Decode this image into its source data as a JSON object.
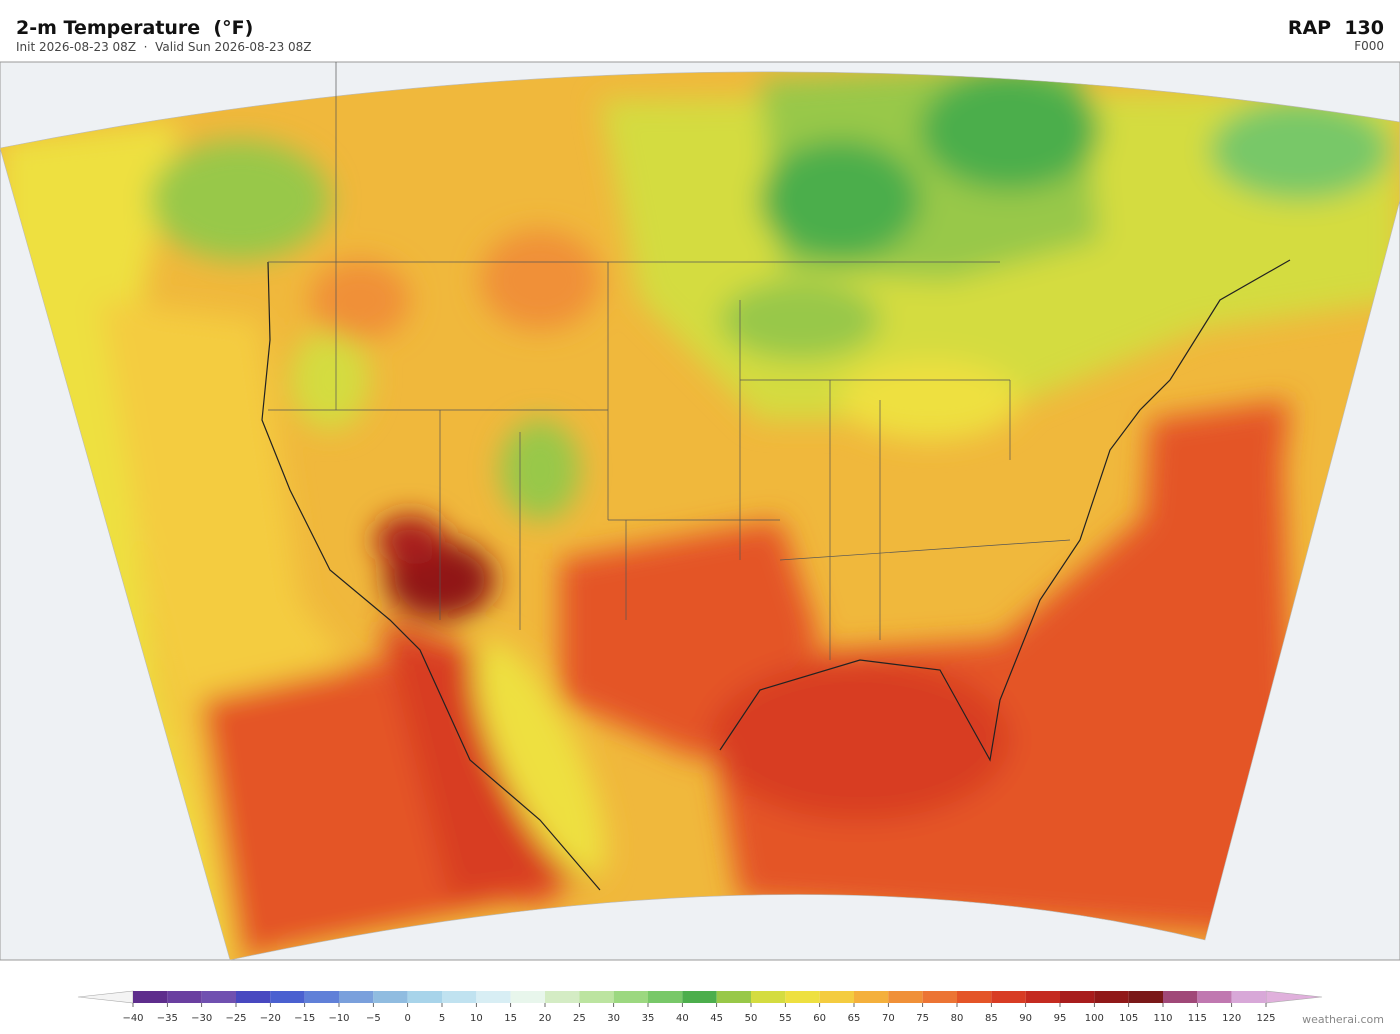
{
  "header": {
    "title": "2-m Temperature  (°F)",
    "subtitle": "Init 2026-08-23 08Z  ·  Valid Sun 2026-08-23 08Z",
    "model": "RAP  130",
    "forecast_hour": "F000"
  },
  "colorbar": {
    "ticks": [
      {
        "value": -40,
        "label": "−40"
      },
      {
        "value": -35,
        "label": "−35"
      },
      {
        "value": -30,
        "label": "−30"
      },
      {
        "value": -25,
        "label": "−25"
      },
      {
        "value": -20,
        "label": "−20"
      },
      {
        "value": -15,
        "label": "−15"
      },
      {
        "value": -10,
        "label": "−10"
      },
      {
        "value": -5,
        "label": "−5"
      },
      0,
      5,
      10,
      15,
      20,
      25,
      30,
      35,
      40,
      45,
      50,
      55,
      60,
      65,
      70,
      75,
      80,
      85,
      90,
      95,
      100,
      105,
      110,
      115,
      120,
      125
    ],
    "colors": [
      "#5e2d8c",
      "#6a3fa0",
      "#7050b0",
      "#4848c0",
      "#4a60d0",
      "#6080d8",
      "#7aa0dc",
      "#90bce0",
      "#a8d4ea",
      "#c0e2f0",
      "#d8eef4",
      "#e8f6ec",
      "#d4ecc4",
      "#bce4a0",
      "#9cd880",
      "#78c868",
      "#4cae4c",
      "#98c848",
      "#d4dc40",
      "#eee040",
      "#f4cc40",
      "#f4b03c",
      "#f09038",
      "#ec7434",
      "#e45428",
      "#d83c24",
      "#c42a20",
      "#a81c1c",
      "#901818",
      "#7a1818",
      "#a04878",
      "#c078b0",
      "#d8a8d8"
    ],
    "under_color": "#f4f4f4",
    "over_color": "#e0b0dc"
  },
  "footer": {
    "watermark": "weatherai.com"
  }
}
